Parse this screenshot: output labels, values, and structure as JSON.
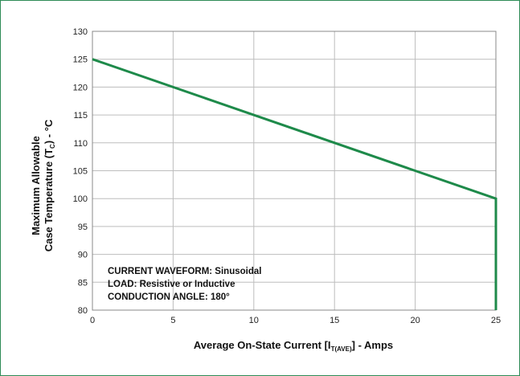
{
  "chart_data": {
    "type": "line",
    "title": "",
    "xlabel": {
      "prefix": "Average On-State Current [I",
      "sub": "T(AVE)",
      "suffix": "] - Amps"
    },
    "ylabel": {
      "line1": "Maximum Allowable",
      "line2_prefix": "Case Temperature (T",
      "line2_sub": "C",
      "line2_suffix": ") - °C"
    },
    "xlim": [
      0,
      25
    ],
    "ylim": [
      80,
      130
    ],
    "x_ticks": [
      "0",
      "5",
      "10",
      "15",
      "20",
      "25"
    ],
    "y_ticks": [
      "80",
      "85",
      "90",
      "95",
      "100",
      "105",
      "110",
      "115",
      "120",
      "125",
      "130"
    ],
    "grid": true,
    "series": [
      {
        "color": "#1e8a4a",
        "points": [
          {
            "x": 0,
            "y": 125
          },
          {
            "x": 25,
            "y": 100
          },
          {
            "x": 25,
            "y": 80
          }
        ]
      }
    ],
    "annotations": [
      "CURRENT WAVEFORM: Sinusoidal",
      "LOAD: Resistive or Inductive",
      "CONDUCTION ANGLE: 180°"
    ]
  }
}
